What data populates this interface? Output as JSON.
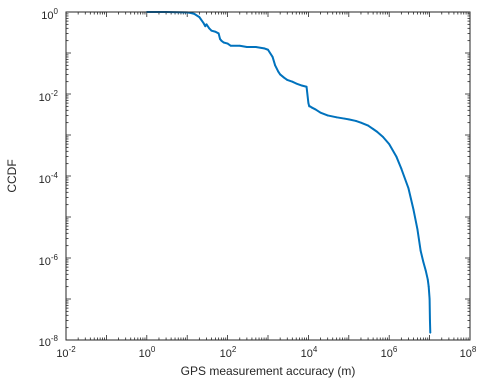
{
  "chart_data": {
    "type": "line",
    "xscale": "log",
    "yscale": "log",
    "xlabel": "GPS measurement accuracy (m)",
    "ylabel": "CCDF",
    "xlim": [
      0.01,
      100000000
    ],
    "ylim": [
      1e-08,
      1
    ],
    "grid": false,
    "line_color": "#0072BD",
    "x_ticks": [
      {
        "base": "10",
        "exp": "-2",
        "value": 0.01
      },
      {
        "base": "10",
        "exp": "0",
        "value": 1
      },
      {
        "base": "10",
        "exp": "2",
        "value": 100
      },
      {
        "base": "10",
        "exp": "4",
        "value": 10000
      },
      {
        "base": "10",
        "exp": "6",
        "value": 1000000
      },
      {
        "base": "10",
        "exp": "8",
        "value": 100000000
      }
    ],
    "y_ticks": [
      {
        "base": "10",
        "exp": "0",
        "value": 1
      },
      {
        "base": "10",
        "exp": "-2",
        "value": 0.01
      },
      {
        "base": "10",
        "exp": "-4",
        "value": 0.0001
      },
      {
        "base": "10",
        "exp": "-6",
        "value": 1e-06
      },
      {
        "base": "10",
        "exp": "-8",
        "value": 1e-08
      }
    ],
    "series": [
      {
        "x": [
          1,
          3,
          10,
          12,
          15,
          20,
          25,
          28,
          30,
          35,
          40,
          50,
          60,
          65,
          70,
          80,
          100,
          120,
          200,
          300,
          500,
          800,
          1000,
          1300,
          1500,
          1800,
          2000,
          2500,
          3000,
          4000,
          5000,
          7000,
          9000,
          10000,
          10500,
          11000,
          12000,
          15000,
          20000,
          30000,
          50000,
          80000,
          100000,
          150000,
          200000,
          300000,
          400000,
          500000,
          700000,
          1000000,
          1500000,
          2000000,
          3000000,
          4000000,
          5000000,
          6000000,
          7000000,
          8000000,
          9000000,
          9500000,
          10000000,
          10200000,
          10400000
        ],
        "y": [
          1,
          1,
          0.98,
          0.95,
          0.9,
          0.75,
          0.55,
          0.45,
          0.5,
          0.4,
          0.35,
          0.33,
          0.3,
          0.22,
          0.2,
          0.18,
          0.17,
          0.15,
          0.15,
          0.14,
          0.14,
          0.13,
          0.12,
          0.08,
          0.05,
          0.035,
          0.03,
          0.025,
          0.022,
          0.02,
          0.018,
          0.016,
          0.015,
          0.006,
          0.005,
          0.005,
          0.0047,
          0.0042,
          0.0035,
          0.003,
          0.0027,
          0.0025,
          0.0024,
          0.0022,
          0.002,
          0.0017,
          0.0014,
          0.0012,
          0.0009,
          0.0006,
          0.0003,
          0.00015,
          5e-05,
          1.5e-05,
          5e-06,
          1.5e-06,
          8e-07,
          5e-07,
          3e-07,
          2e-07,
          1e-07,
          3e-08,
          1.5e-08
        ]
      }
    ]
  }
}
